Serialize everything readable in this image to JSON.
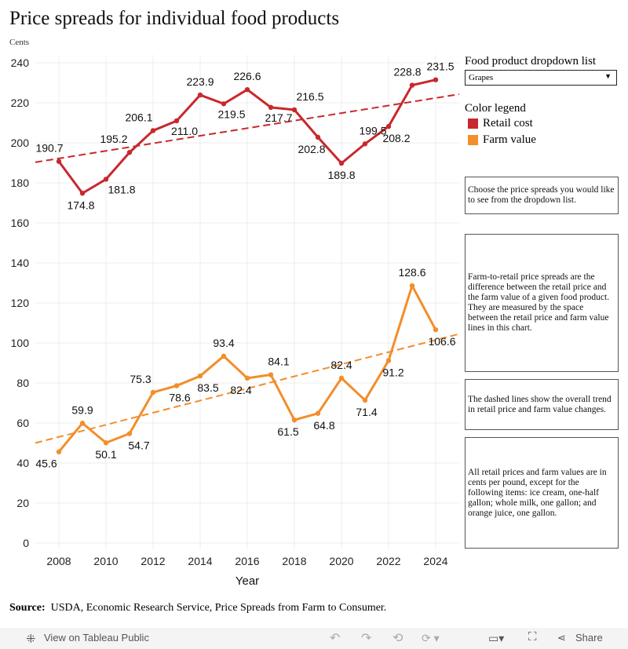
{
  "title": "Price spreads for individual food products",
  "y_unit": "Cents",
  "dropdown": {
    "label": "Food product dropdown list",
    "value": "Grapes"
  },
  "legend": {
    "title": "Color legend",
    "items": [
      {
        "label": "Retail cost",
        "color": "#c8282d"
      },
      {
        "label": "Farm value",
        "color": "#f28e2b"
      }
    ]
  },
  "notes": [
    "Choose the price spreads you would like to see from the dropdown list.",
    "Farm-to-retail price spreads are the difference between the retail price and the farm value of a given food product. They are measured by the space between the retail price and farm value lines in this chart.",
    "The dashed lines show the overall trend in retail price and farm value changes.",
    "All retail prices and farm values are in cents per pound, except for the following items: ice cream, one-half gallon; whole milk, one gallon; and orange juice, one gallon."
  ],
  "source": {
    "label": "Source:",
    "text": "USDA, Economic Research Service, Price Spreads from Farm to Consumer."
  },
  "toolbar": {
    "view_label": "View on Tableau Public",
    "share_label": "Share"
  },
  "chart_data": {
    "type": "line",
    "xlabel": "Year",
    "ylabel": "Cents",
    "x": [
      2008,
      2009,
      2010,
      2011,
      2012,
      2013,
      2014,
      2015,
      2016,
      2017,
      2018,
      2019,
      2020,
      2021,
      2022,
      2023,
      2024
    ],
    "xticks": [
      2008,
      2010,
      2012,
      2014,
      2016,
      2018,
      2020,
      2022,
      2024
    ],
    "yticks": [
      0,
      20,
      40,
      60,
      80,
      100,
      120,
      140,
      160,
      180,
      200,
      220,
      240
    ],
    "xlim": [
      2007,
      2025
    ],
    "ylim": [
      0,
      240
    ],
    "grid": true,
    "series": [
      {
        "name": "Retail cost",
        "color": "#c8282d",
        "values": [
          190.7,
          174.8,
          181.8,
          195.2,
          206.1,
          211.0,
          223.9,
          219.5,
          226.6,
          217.7,
          216.5,
          202.8,
          189.8,
          199.5,
          208.2,
          228.8,
          231.5
        ],
        "trend": [
          [
            2007,
            190.3
          ],
          [
            2025,
            224.3
          ]
        ]
      },
      {
        "name": "Farm value",
        "color": "#f28e2b",
        "values": [
          45.6,
          59.9,
          50.1,
          54.7,
          75.3,
          78.6,
          83.5,
          93.4,
          82.4,
          84.1,
          61.5,
          64.8,
          82.4,
          71.4,
          91.2,
          128.6,
          106.6
        ],
        "trend": [
          [
            2007,
            50.0
          ],
          [
            2025,
            104.5
          ]
        ]
      }
    ]
  }
}
